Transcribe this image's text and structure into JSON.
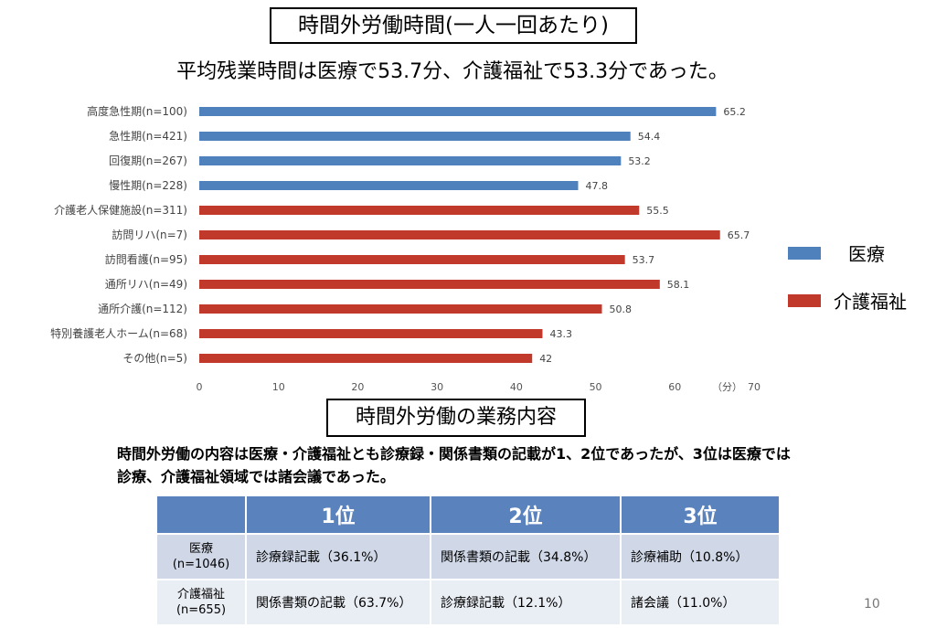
{
  "title": "時間外労働時間(一人一回あたり)",
  "subtitle": "平均残業時間は医療で53.7分、介護福祉で53.3分であった。",
  "chart_data": {
    "type": "bar",
    "orientation": "horizontal",
    "categories": [
      "高度急性期(n=100)",
      "急性期(n=421)",
      "回復期(n=267)",
      "慢性期(n=228)",
      "介護老人保健施設(n=311)",
      "訪問リハ(n=7)",
      "訪問看護(n=95)",
      "通所リハ(n=49)",
      "通所介護(n=112)",
      "特別養護老人ホーム(n=68)",
      "その他(n=5)"
    ],
    "values": [
      65.2,
      54.4,
      53.2,
      47.8,
      55.5,
      65.7,
      53.7,
      58.1,
      50.8,
      43.3,
      42
    ],
    "groups": [
      "医療",
      "医療",
      "医療",
      "医療",
      "介護福祉",
      "介護福祉",
      "介護福祉",
      "介護福祉",
      "介護福祉",
      "介護福祉",
      "介護福祉"
    ],
    "xlim": [
      0,
      70
    ],
    "xticks": [
      0,
      10,
      20,
      30,
      40,
      50,
      60,
      70
    ],
    "xunit": "（分）",
    "legend": [
      {
        "name": "医療",
        "color": "#4f81bd"
      },
      {
        "name": "介護福祉",
        "color": "#c0392b"
      }
    ],
    "legend_position": "right",
    "grid": false
  },
  "section_title": "時間外労働の業務内容",
  "description": "時間外労働の内容は医療・介護福祉とも診療録・関係書類の記載が1、2位であったが、3位は医療では診療、介護福祉領域では諸会議であった。",
  "table": {
    "headers": [
      "",
      "1位",
      "2位",
      "3位"
    ],
    "rows": [
      {
        "label": "医療",
        "n": "(n=1046)",
        "cells": [
          "診療録記載（36.1%）",
          "関係書類の記載（34.8%）",
          "診療補助（10.8%）"
        ]
      },
      {
        "label": "介護福祉",
        "n": "(n=655)",
        "cells": [
          "関係書類の記載（63.7%）",
          "診療録記載（12.1%）",
          "諸会議（11.0%）"
        ]
      }
    ],
    "header_color": "#5a82bc"
  },
  "page_number": "10"
}
